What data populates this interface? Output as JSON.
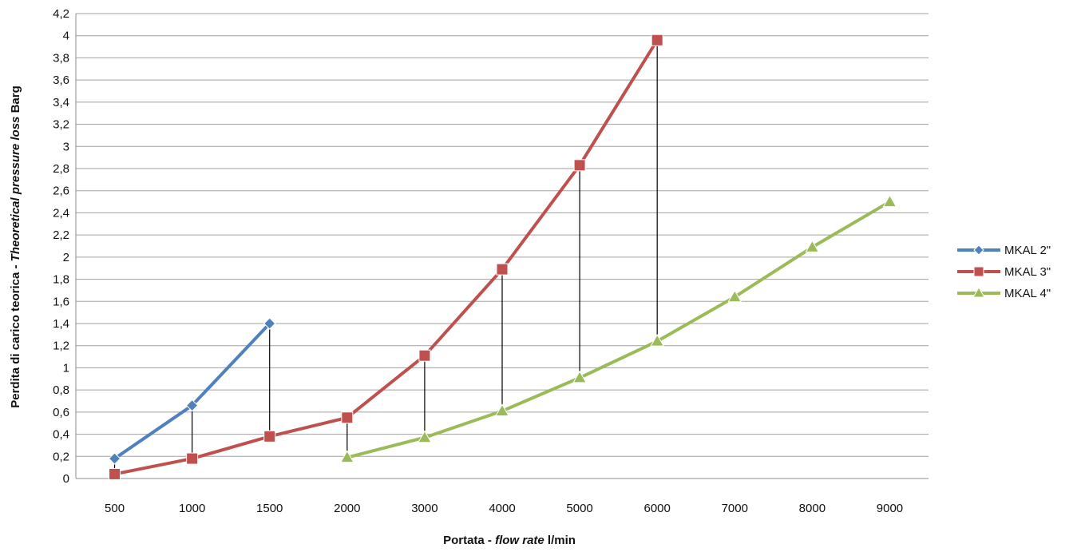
{
  "chart_data": {
    "type": "line",
    "categories": [
      "500",
      "1000",
      "1500",
      "2000",
      "3000",
      "4000",
      "5000",
      "6000",
      "7000",
      "8000",
      "9000"
    ],
    "y_ticks": [
      "0",
      "0,2",
      "0,4",
      "0,6",
      "0,8",
      "1",
      "1,2",
      "1,4",
      "1,6",
      "1,8",
      "2",
      "2,2",
      "2,4",
      "2,6",
      "2,8",
      "3",
      "3,2",
      "3,4",
      "3,6",
      "3,8",
      "4",
      "4,2"
    ],
    "ylim": [
      0,
      4.2
    ],
    "grid": "horizontal",
    "legend_position": "right",
    "xlabel": {
      "plain": "Portata - ",
      "italic": "flow rate",
      "suffix": " l/min"
    },
    "ylabel": {
      "plain": "Perdita di carico teorica - ",
      "italic": "Theoretical pressure loss",
      "suffix": " Barg"
    },
    "series": [
      {
        "name": "MKAL 2\"",
        "color": "#4F81BD",
        "marker": "diamond",
        "values": [
          0.18,
          0.66,
          1.4,
          null,
          null,
          null,
          null,
          null,
          null,
          null,
          null
        ]
      },
      {
        "name": "MKAL 3\"",
        "color": "#C0504D",
        "marker": "square",
        "values": [
          0.04,
          0.18,
          0.38,
          0.55,
          1.11,
          1.89,
          2.83,
          3.96,
          null,
          null,
          null
        ]
      },
      {
        "name": "MKAL 4\"",
        "color": "#9BBB59",
        "marker": "triangle",
        "values": [
          null,
          null,
          null,
          0.19,
          0.37,
          0.61,
          0.91,
          1.24,
          1.64,
          2.09,
          2.5
        ]
      }
    ],
    "drop_lines": true
  }
}
